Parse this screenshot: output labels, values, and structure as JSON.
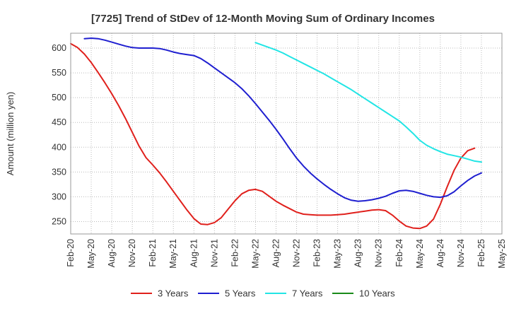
{
  "chart_data": {
    "type": "line",
    "title": "[7725]  Trend of StDev of 12-Month Moving Sum of Ordinary Incomes",
    "xlabel": "",
    "ylabel": "Amount (million yen)",
    "ylim": [
      225,
      630
    ],
    "yticks": [
      250,
      300,
      350,
      400,
      450,
      500,
      550,
      600
    ],
    "x_tick_labels": [
      "Feb-20",
      "May-20",
      "Aug-20",
      "Nov-20",
      "Feb-21",
      "May-21",
      "Aug-21",
      "Nov-21",
      "Feb-22",
      "May-22",
      "Aug-22",
      "Nov-22",
      "Feb-23",
      "May-23",
      "Aug-23",
      "Nov-23",
      "Feb-24",
      "May-24",
      "Aug-24",
      "Nov-24",
      "Feb-25",
      "May-25"
    ],
    "grid": true,
    "legend_position": "bottom",
    "series": [
      {
        "name": "3 Years",
        "color": "#e0201c",
        "x": [
          "Feb-20",
          "Mar-20",
          "Apr-20",
          "May-20",
          "Jun-20",
          "Jul-20",
          "Aug-20",
          "Sep-20",
          "Oct-20",
          "Nov-20",
          "Dec-20",
          "Jan-21",
          "Feb-21",
          "Mar-21",
          "Apr-21",
          "May-21",
          "Jun-21",
          "Jul-21",
          "Aug-21",
          "Sep-21",
          "Oct-21",
          "Nov-21",
          "Dec-21",
          "Jan-22",
          "Feb-22",
          "Mar-22",
          "Apr-22",
          "May-22",
          "Jun-22",
          "Jul-22",
          "Aug-22",
          "Sep-22",
          "Oct-22",
          "Nov-22",
          "Dec-22",
          "Jan-23",
          "Feb-23",
          "Mar-23",
          "Apr-23",
          "May-23",
          "Jun-23",
          "Jul-23",
          "Aug-23",
          "Sep-23",
          "Oct-23",
          "Nov-23",
          "Dec-23",
          "Jan-24",
          "Feb-24",
          "Mar-24",
          "Apr-24",
          "May-24",
          "Jun-24",
          "Jul-24",
          "Aug-24",
          "Sep-24",
          "Oct-24",
          "Nov-24",
          "Dec-24",
          "Jan-25",
          "Feb-25"
        ],
        "values": [
          609,
          601,
          588,
          571,
          551,
          530,
          508,
          484,
          458,
          430,
          402,
          379,
          364,
          348,
          330,
          311,
          292,
          273,
          256,
          245,
          244,
          248,
          258,
          275,
          292,
          306,
          313,
          315,
          311,
          301,
          291,
          283,
          276,
          269,
          265,
          264,
          263,
          263,
          263,
          264,
          265,
          267,
          269,
          271,
          273,
          274,
          272,
          263,
          251,
          241,
          237,
          236,
          241,
          255,
          285,
          320,
          353,
          378,
          393,
          398,
          null
        ]
      },
      {
        "name": "5 Years",
        "color": "#1f1fd0",
        "x": [
          "Feb-20",
          "Mar-20",
          "Apr-20",
          "May-20",
          "Jun-20",
          "Jul-20",
          "Aug-20",
          "Sep-20",
          "Oct-20",
          "Nov-20",
          "Dec-20",
          "Jan-21",
          "Feb-21",
          "Mar-21",
          "Apr-21",
          "May-21",
          "Jun-21",
          "Jul-21",
          "Aug-21",
          "Sep-21",
          "Oct-21",
          "Nov-21",
          "Dec-21",
          "Jan-22",
          "Feb-22",
          "Mar-22",
          "Apr-22",
          "May-22",
          "Jun-22",
          "Jul-22",
          "Aug-22",
          "Sep-22",
          "Oct-22",
          "Nov-22",
          "Dec-22",
          "Jan-23",
          "Feb-23",
          "Mar-23",
          "Apr-23",
          "May-23",
          "Jun-23",
          "Jul-23",
          "Aug-23",
          "Sep-23",
          "Oct-23",
          "Nov-23",
          "Dec-23",
          "Jan-24",
          "Feb-24",
          "Mar-24",
          "Apr-24",
          "May-24",
          "Jun-24",
          "Jul-24",
          "Aug-24",
          "Sep-24",
          "Oct-24",
          "Nov-24",
          "Dec-24",
          "Jan-25",
          "Feb-25"
        ],
        "values": [
          null,
          null,
          619,
          620,
          619,
          616,
          612,
          608,
          604,
          601,
          600,
          600,
          600,
          599,
          596,
          592,
          589,
          587,
          585,
          579,
          570,
          560,
          550,
          540,
          530,
          518,
          504,
          488,
          471,
          454,
          436,
          417,
          397,
          378,
          362,
          348,
          336,
          325,
          315,
          306,
          298,
          293,
          291,
          292,
          294,
          297,
          301,
          307,
          312,
          313,
          311,
          307,
          303,
          300,
          299,
          302,
          310,
          322,
          333,
          342,
          348
        ]
      },
      {
        "name": "7 Years",
        "color": "#22e5e5",
        "x": [
          "Feb-20",
          "Mar-20",
          "Apr-20",
          "May-20",
          "Jun-20",
          "Jul-20",
          "Aug-20",
          "Sep-20",
          "Oct-20",
          "Nov-20",
          "Dec-20",
          "Jan-21",
          "Feb-21",
          "Mar-21",
          "Apr-21",
          "May-21",
          "Jun-21",
          "Jul-21",
          "Aug-21",
          "Sep-21",
          "Oct-21",
          "Nov-21",
          "Dec-21",
          "Jan-22",
          "Feb-22",
          "Mar-22",
          "Apr-22",
          "May-22",
          "Jun-22",
          "Jul-22",
          "Aug-22",
          "Sep-22",
          "Oct-22",
          "Nov-22",
          "Dec-22",
          "Jan-23",
          "Feb-23",
          "Mar-23",
          "Apr-23",
          "May-23",
          "Jun-23",
          "Jul-23",
          "Aug-23",
          "Sep-23",
          "Oct-23",
          "Nov-23",
          "Dec-23",
          "Jan-24",
          "Feb-24",
          "Mar-24",
          "Apr-24",
          "May-24",
          "Jun-24",
          "Jul-24",
          "Aug-24",
          "Sep-24",
          "Oct-24",
          "Nov-24",
          "Dec-24",
          "Jan-25",
          "Feb-25"
        ],
        "values": [
          null,
          null,
          null,
          null,
          null,
          null,
          null,
          null,
          null,
          null,
          null,
          null,
          null,
          null,
          null,
          null,
          null,
          null,
          null,
          null,
          null,
          null,
          null,
          null,
          null,
          null,
          null,
          611,
          606,
          601,
          596,
          590,
          583,
          576,
          569,
          562,
          555,
          548,
          540,
          532,
          524,
          516,
          507,
          498,
          489,
          480,
          471,
          462,
          453,
          441,
          428,
          414,
          404,
          397,
          391,
          386,
          383,
          380,
          376,
          372,
          370
        ]
      },
      {
        "name": "10 Years",
        "color": "#1a8a1a",
        "x": [],
        "values": []
      }
    ]
  }
}
